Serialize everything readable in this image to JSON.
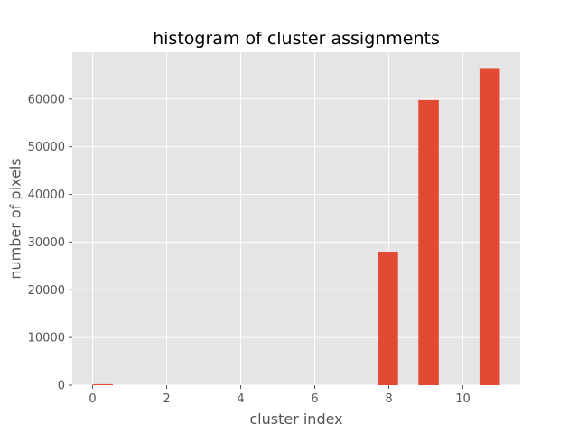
{
  "chart_data": {
    "type": "bar",
    "title": "histogram of cluster assignments",
    "xlabel": "cluster index",
    "ylabel": "number of pixels",
    "xlim": [
      -0.55,
      11.55
    ],
    "ylim": [
      0,
      69800
    ],
    "xticks": [
      0,
      2,
      4,
      6,
      8,
      10
    ],
    "yticks": [
      0,
      10000,
      20000,
      30000,
      40000,
      50000,
      60000
    ],
    "bins": [
      {
        "x0": 0.0,
        "x1": 0.55,
        "value": 200
      },
      {
        "x0": 7.7,
        "x1": 8.25,
        "value": 28000
      },
      {
        "x0": 8.8,
        "x1": 9.35,
        "value": 59800
      },
      {
        "x0": 10.45,
        "x1": 11.0,
        "value": 66500
      }
    ],
    "grid": true,
    "colors": {
      "bar": "#e24a33",
      "background": "#e5e5e5",
      "grid": "#ffffff"
    }
  }
}
